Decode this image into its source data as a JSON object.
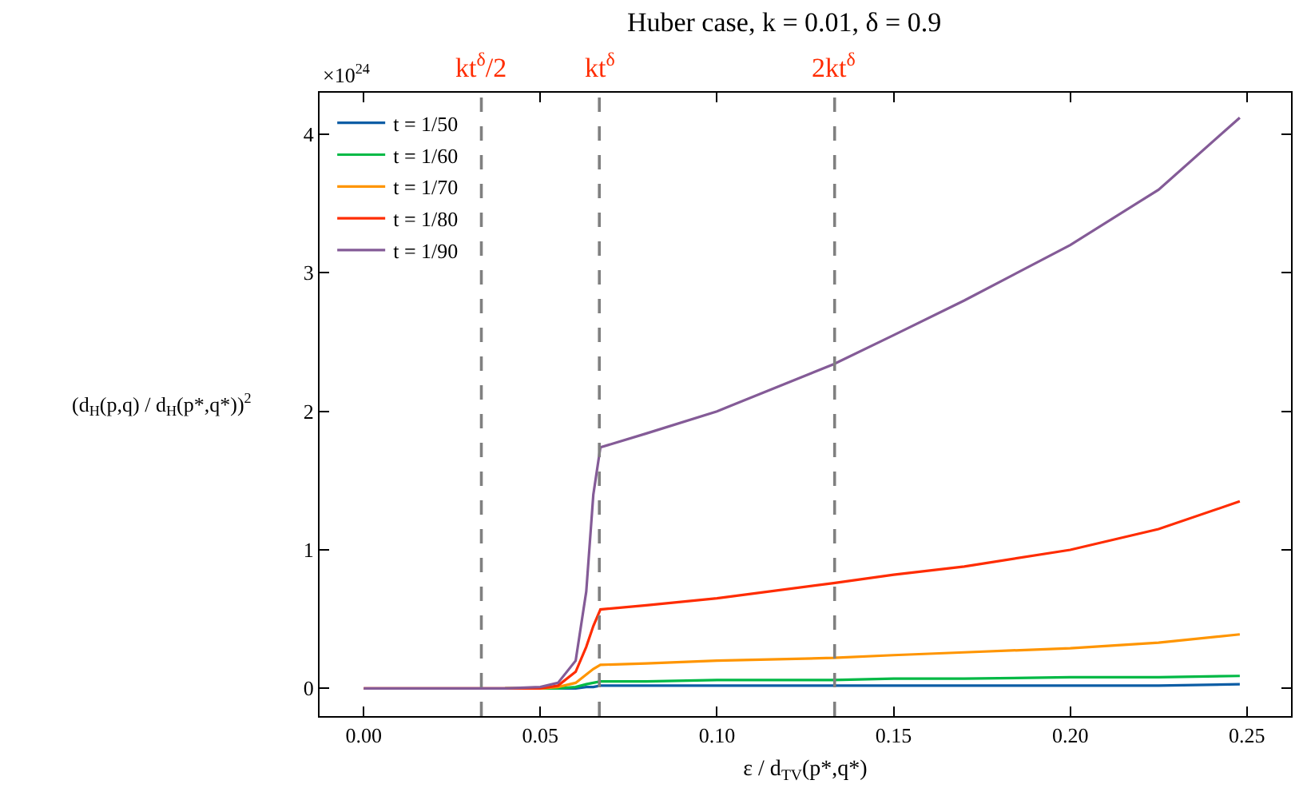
{
  "chart_data": {
    "type": "line",
    "title": "Huber case, k = 0.01, δ = 0.9",
    "xlabel": "ε / d$_{TV}$(p*,q*)",
    "ylabel": "(d$_{H}$(p,q) / d$_{H}$(p*,q*))$^{2}$",
    "annotations": [
      "×10$^{24}$"
    ],
    "x": [
      0,
      0.02,
      0.04,
      0.05,
      0.055,
      0.06,
      0.063,
      0.065,
      0.067,
      0.08,
      0.1,
      0.133,
      0.15,
      0.17,
      0.2,
      0.225,
      0.248
    ],
    "series": [
      {
        "name": "t = 1/50",
        "color": "#0c5da5",
        "values": [
          null,
          null,
          null,
          0,
          0,
          0,
          0.01,
          0.01,
          0.02,
          0.02,
          0.02,
          0.02,
          0.02,
          0.02,
          0.02,
          0.02,
          0.03
        ]
      },
      {
        "name": "t = 1/60",
        "color": "#00b945",
        "values": [
          null,
          null,
          0,
          0,
          0,
          0.01,
          0.03,
          0.04,
          0.05,
          0.05,
          0.06,
          0.06,
          0.07,
          0.07,
          0.08,
          0.08,
          0.09
        ]
      },
      {
        "name": "t = 1/70",
        "color": "#ff9500",
        "values": [
          null,
          null,
          0,
          0,
          0.01,
          0.04,
          0.1,
          0.14,
          0.17,
          0.18,
          0.2,
          0.22,
          0.24,
          0.26,
          0.29,
          0.33,
          0.39
        ]
      },
      {
        "name": "t = 1/80",
        "color": "#ff2c00",
        "values": [
          0,
          0,
          0,
          0,
          0.02,
          0.12,
          0.3,
          0.45,
          0.57,
          0.6,
          0.65,
          0.76,
          0.82,
          0.88,
          1.0,
          1.15,
          1.35
        ]
      },
      {
        "name": "t = 1/90",
        "color": "#845b97",
        "values": [
          0,
          0,
          0,
          0.01,
          0.04,
          0.2,
          0.7,
          1.4,
          1.74,
          1.84,
          2.0,
          2.34,
          2.55,
          2.8,
          3.2,
          3.6,
          4.12
        ]
      }
    ],
    "xlim": [
      -0.0125,
      0.2625
    ],
    "ylim": [
      -0.2,
      4.3
    ],
    "xticks": [
      {
        "value": 0,
        "label": "0.00"
      },
      {
        "value": 0.05,
        "label": "0.05"
      },
      {
        "value": 0.1,
        "label": "0.10"
      },
      {
        "value": 0.15,
        "label": "0.15"
      },
      {
        "value": 0.2,
        "label": "0.20"
      },
      {
        "value": 0.25,
        "label": "0.25"
      }
    ],
    "yticks": [
      0,
      1,
      2,
      3,
      4
    ],
    "ref_lines": [
      {
        "axis": "x",
        "value": 0.0333,
        "label": "kt$^{δ}$/2",
        "color": "#808080",
        "line_style": "dashed"
      },
      {
        "axis": "x",
        "value": 0.0667,
        "label": "kt$^{δ}$",
        "color": "#808080",
        "line_style": "dashed"
      },
      {
        "axis": "x",
        "value": 0.1333,
        "label": "2kt$^{δ}$",
        "color": "#808080",
        "line_style": "dashed"
      }
    ],
    "grid": false,
    "legend": "top left",
    "marker": "none",
    "line_style": "solid"
  }
}
